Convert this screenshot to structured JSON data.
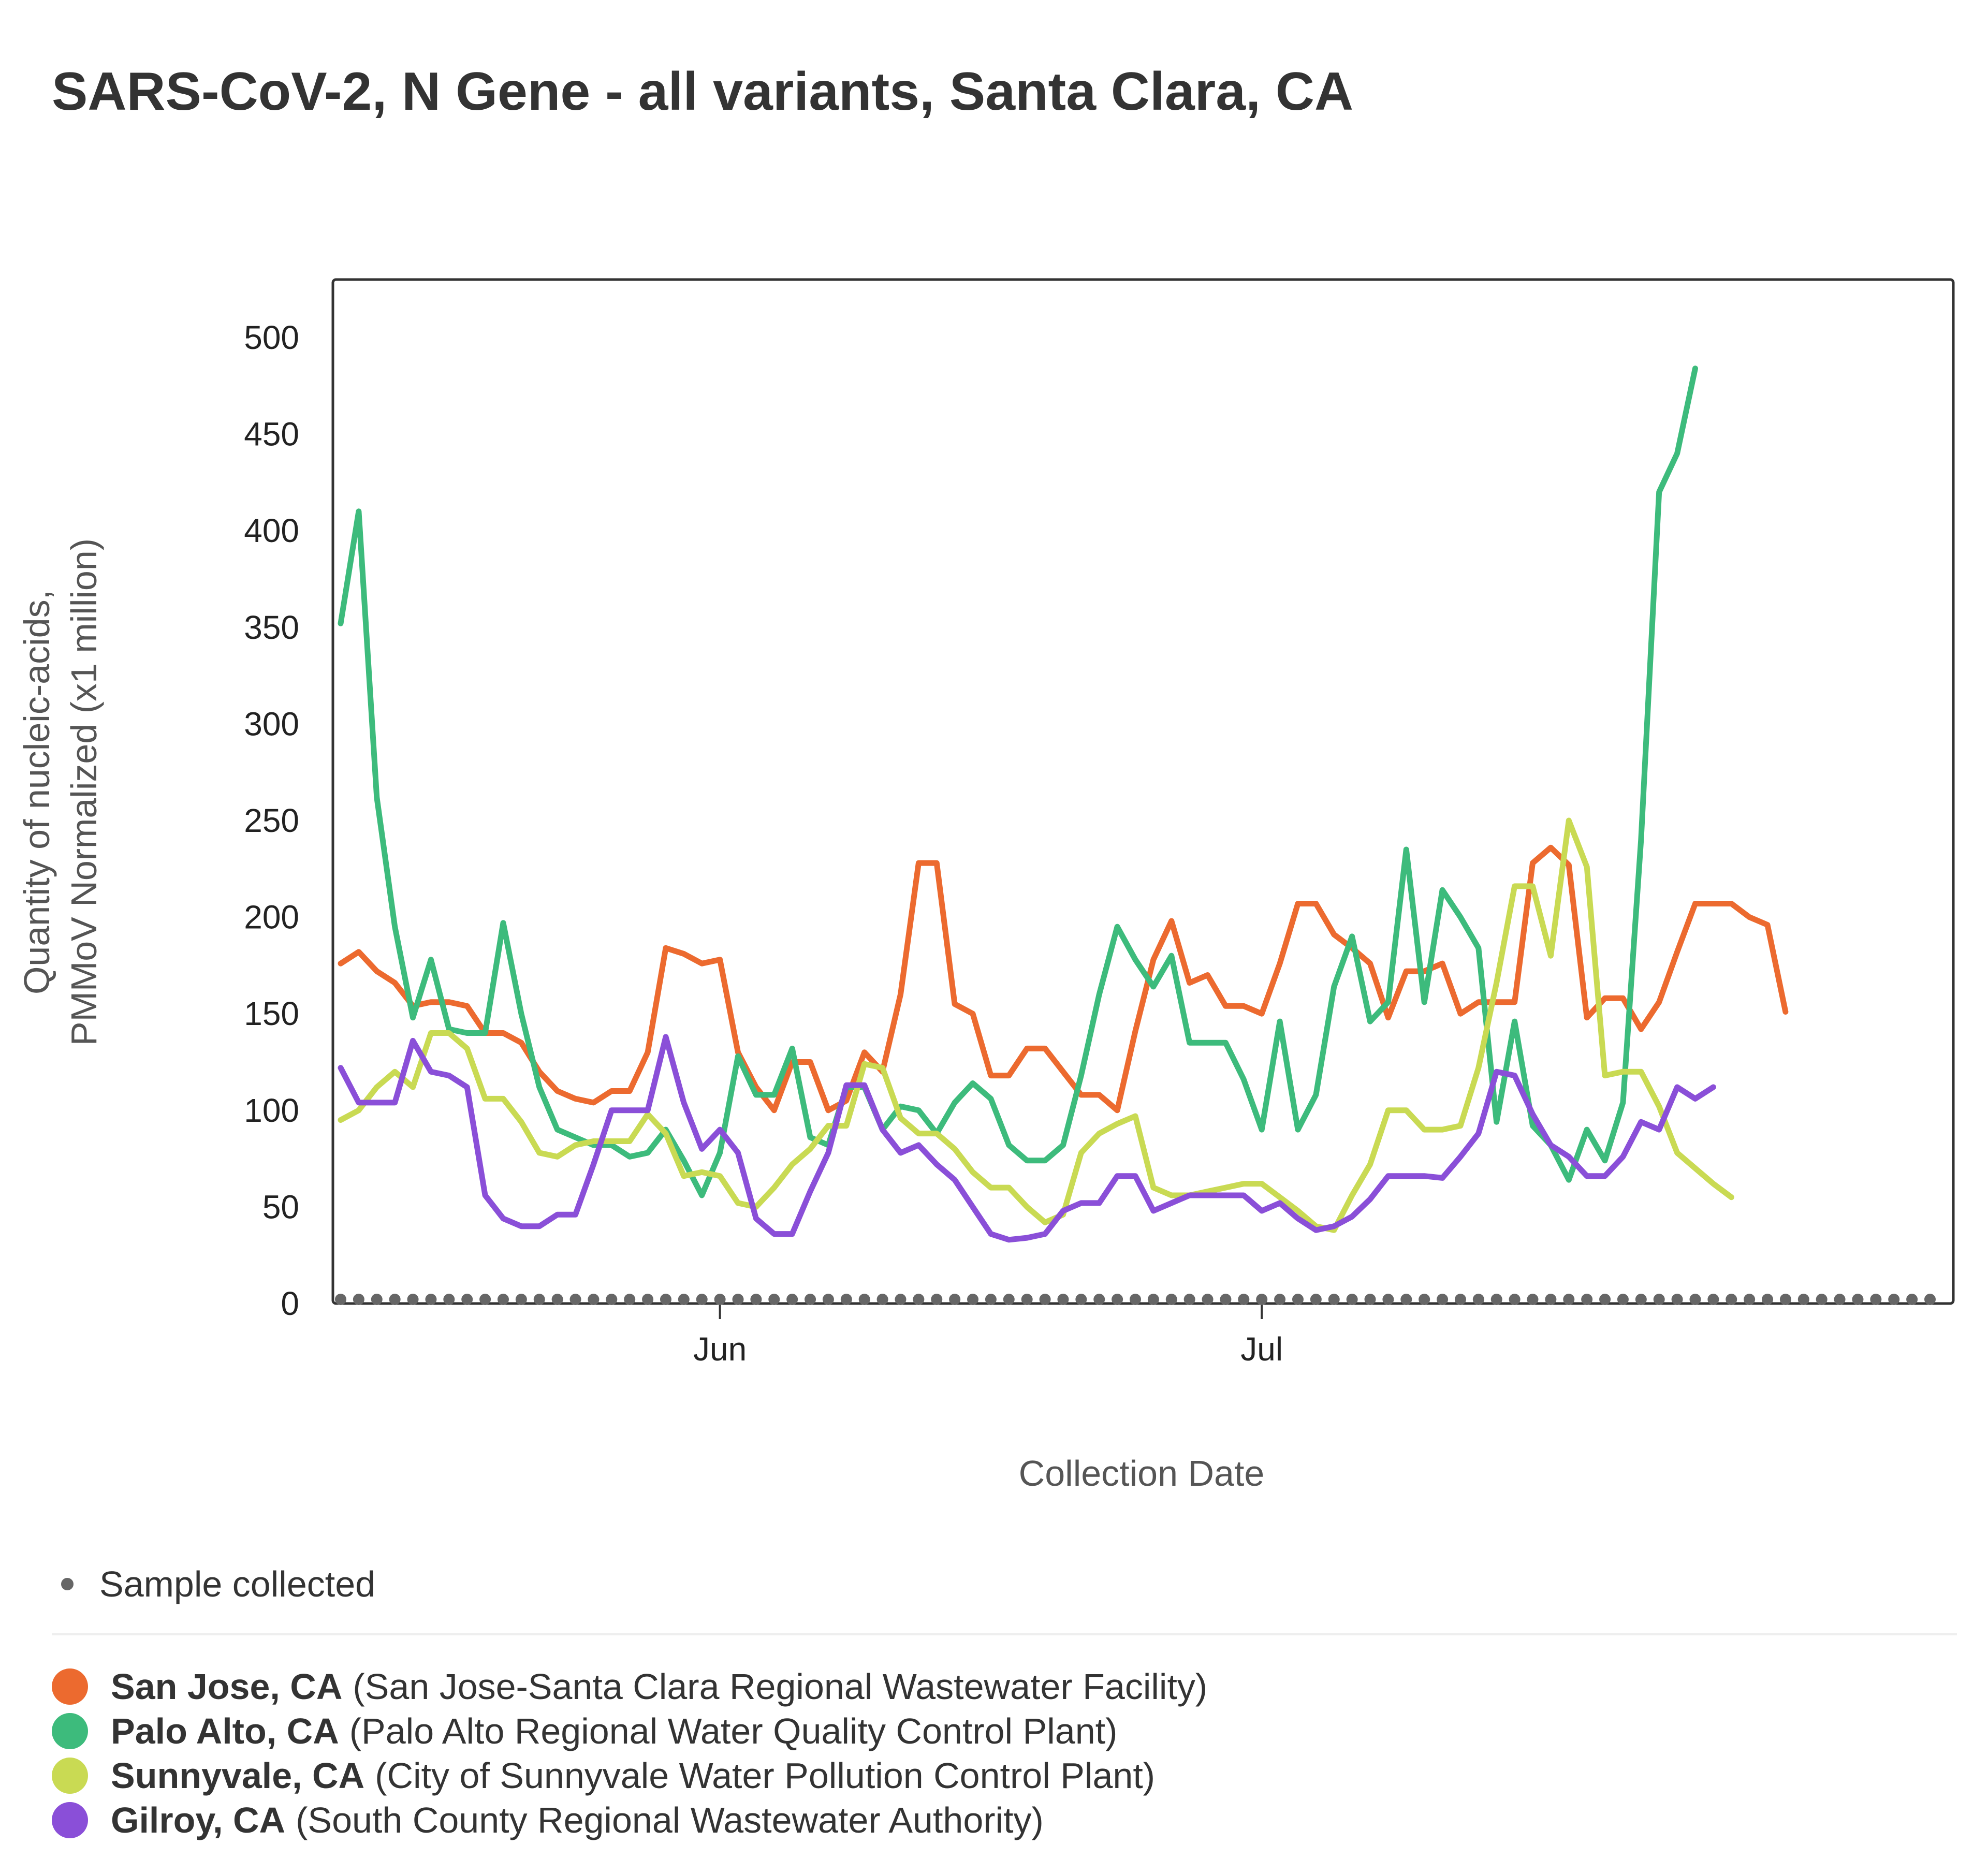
{
  "chart_data": {
    "type": "line",
    "title": "SARS-CoV-2, N Gene - all variants, Santa Clara, CA",
    "xlabel": "Collection Date",
    "ylabel_lines": [
      "Quantity of nucleic-acids,",
      "PMMoV Normalized (x1 million)"
    ],
    "x_start": "2023-05-11",
    "x_step_days": 1,
    "x_ticks": [
      {
        "date": "2023-06-01",
        "label": "Jun"
      },
      {
        "date": "2023-07-01",
        "label": "Jul"
      }
    ],
    "y_ticks": [
      0,
      50,
      100,
      150,
      200,
      250,
      300,
      350,
      400,
      450,
      500
    ],
    "ylim": [
      0,
      530
    ],
    "xlim": [
      "2023-05-11",
      "2023-08-07"
    ],
    "grid": false,
    "sample_marker_label": "Sample collected",
    "sample_dates": [
      "2023-05-11",
      "2023-05-12",
      "2023-05-13",
      "2023-05-14",
      "2023-05-15",
      "2023-05-16",
      "2023-05-17",
      "2023-05-18",
      "2023-05-19",
      "2023-05-20",
      "2023-05-21",
      "2023-05-22",
      "2023-05-23",
      "2023-05-24",
      "2023-05-25",
      "2023-05-26",
      "2023-05-27",
      "2023-05-28",
      "2023-05-29",
      "2023-05-30",
      "2023-05-31",
      "2023-06-01",
      "2023-06-02",
      "2023-06-03",
      "2023-06-04",
      "2023-06-05",
      "2023-06-06",
      "2023-06-07",
      "2023-06-08",
      "2023-06-09",
      "2023-06-10",
      "2023-06-11",
      "2023-06-12",
      "2023-06-13",
      "2023-06-14",
      "2023-06-15",
      "2023-06-16",
      "2023-06-17",
      "2023-06-18",
      "2023-06-19",
      "2023-06-20",
      "2023-06-21",
      "2023-06-22",
      "2023-06-23",
      "2023-06-24",
      "2023-06-25",
      "2023-06-26",
      "2023-06-27",
      "2023-06-28",
      "2023-06-29",
      "2023-06-30",
      "2023-07-01",
      "2023-07-02",
      "2023-07-03",
      "2023-07-04",
      "2023-07-05",
      "2023-07-06",
      "2023-07-07",
      "2023-07-08",
      "2023-07-09",
      "2023-07-10",
      "2023-07-11",
      "2023-07-12",
      "2023-07-13",
      "2023-07-14",
      "2023-07-15",
      "2023-07-16",
      "2023-07-17",
      "2023-07-18",
      "2023-07-19",
      "2023-07-20",
      "2023-07-21",
      "2023-07-22",
      "2023-07-23",
      "2023-07-24",
      "2023-07-25",
      "2023-07-26",
      "2023-07-27",
      "2023-07-28",
      "2023-07-29",
      "2023-07-30",
      "2023-07-31",
      "2023-08-01",
      "2023-08-02",
      "2023-08-03",
      "2023-08-04",
      "2023-08-05",
      "2023-08-06",
      "2023-08-07"
    ],
    "series": [
      {
        "name": "San Jose, CA",
        "facility": "(San Jose-Santa Clara Regional Wastewater Facility)",
        "color": "#ec6a2f",
        "values": [
          176,
          182,
          172,
          166,
          154,
          156,
          156,
          154,
          140,
          140,
          135,
          120,
          110,
          106,
          104,
          110,
          110,
          130,
          184,
          181,
          176,
          178,
          130,
          112,
          100,
          125,
          125,
          100,
          105,
          130,
          120,
          160,
          228,
          228,
          155,
          150,
          118,
          118,
          132,
          132,
          120,
          108,
          108,
          100,
          141,
          178,
          198,
          166,
          170,
          154,
          154,
          150,
          176,
          207,
          207,
          191,
          184,
          176,
          148,
          172,
          172,
          176,
          150,
          156,
          156,
          156,
          228,
          236,
          227,
          148,
          158,
          158,
          142,
          156,
          182,
          207,
          207,
          207,
          200,
          196,
          151
        ]
      },
      {
        "name": "Palo Alto, CA",
        "facility": "(Palo Alto Regional Water Quality Control Plant)",
        "color": "#3dbb7c",
        "values": [
          352,
          410,
          262,
          195,
          148,
          178,
          142,
          140,
          140,
          197,
          150,
          112,
          90,
          86,
          82,
          82,
          76,
          78,
          90,
          74,
          56,
          78,
          128,
          108,
          108,
          132,
          86,
          82,
          112,
          112,
          90,
          102,
          100,
          88,
          104,
          114,
          106,
          82,
          74,
          74,
          82,
          118,
          160,
          195,
          178,
          164,
          180,
          135,
          135,
          135,
          116,
          90,
          146,
          90,
          108,
          164,
          190,
          146,
          156,
          235,
          156,
          214,
          200,
          184,
          94,
          146,
          92,
          82,
          64,
          90,
          74,
          104,
          240,
          420,
          440,
          484
        ]
      },
      {
        "name": "Sunnyvale, CA",
        "facility": "(City of Sunnyvale Water Pollution Control Plant)",
        "color": "#c9da53",
        "values": [
          95,
          100,
          112,
          120,
          112,
          140,
          140,
          132,
          106,
          106,
          94,
          78,
          76,
          82,
          84,
          84,
          84,
          98,
          88,
          66,
          68,
          66,
          52,
          50,
          60,
          72,
          80,
          92,
          92,
          124,
          122,
          96,
          88,
          88,
          80,
          68,
          60,
          60,
          50,
          42,
          46,
          78,
          88,
          93,
          97,
          60,
          56,
          56,
          58,
          60,
          62,
          62,
          55,
          48,
          40,
          38,
          56,
          72,
          100,
          100,
          90,
          90,
          92,
          122,
          166,
          216,
          216,
          180,
          250,
          226,
          118,
          120,
          120,
          102,
          78,
          70,
          62,
          55
        ]
      },
      {
        "name": "Gilroy, CA",
        "facility": "(South County Regional Wastewater Authority)",
        "color": "#8a4fd8",
        "values": [
          122,
          104,
          104,
          104,
          136,
          120,
          118,
          112,
          56,
          44,
          40,
          40,
          46,
          46,
          72,
          100,
          100,
          100,
          138,
          104,
          80,
          90,
          78,
          44,
          36,
          36,
          58,
          78,
          113,
          113,
          90,
          78,
          82,
          72,
          64,
          50,
          36,
          33,
          34,
          36,
          48,
          52,
          52,
          66,
          66,
          48,
          52,
          56,
          56,
          56,
          56,
          48,
          52,
          44,
          38,
          40,
          45,
          54,
          66,
          66,
          66,
          65,
          76,
          88,
          120,
          118,
          98,
          82,
          76,
          66,
          66,
          76,
          94,
          90,
          112,
          106,
          112
        ]
      }
    ]
  }
}
